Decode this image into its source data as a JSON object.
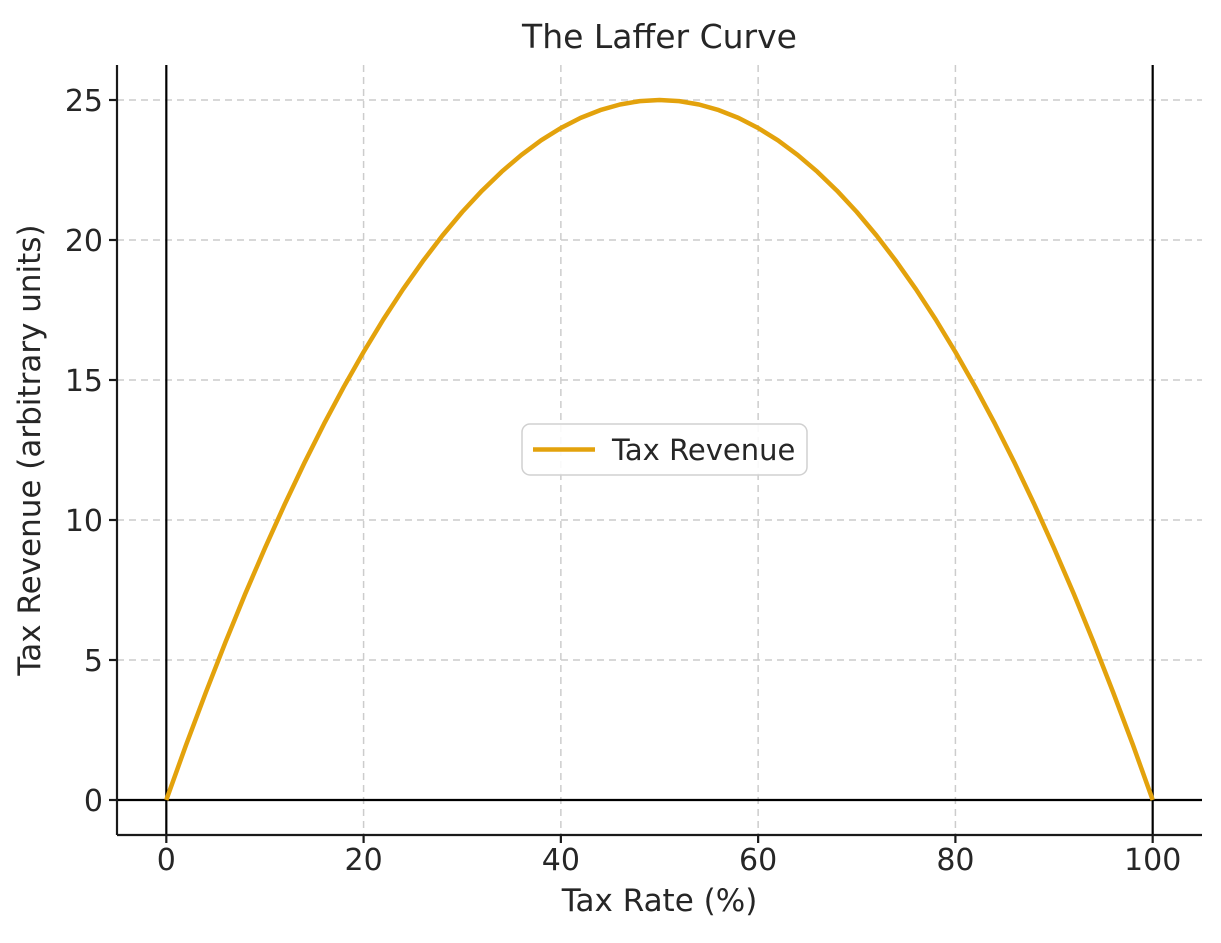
{
  "chart_data": {
    "type": "line",
    "title": "The Laffer Curve",
    "xlabel": "Tax Rate (%)",
    "ylabel": "Tax Revenue (arbitrary units)",
    "xlim": [
      -5,
      105
    ],
    "ylim": [
      -1.25,
      26.25
    ],
    "xticks": [
      0,
      20,
      40,
      60,
      80,
      100
    ],
    "yticks": [
      0,
      5,
      10,
      15,
      20,
      25
    ],
    "grid": {
      "on": true,
      "linestyle": "dashed",
      "color": "#cccccc"
    },
    "colors": {
      "curve": "#E3A20C",
      "reference_line": "#000000",
      "text": "#262626",
      "spine": "#1a1a1a",
      "grid": "#cccccc",
      "legend_border": "#d0d0d0",
      "background": "#ffffff"
    },
    "legend": {
      "location": "center",
      "entries": [
        {
          "label": "Tax Revenue",
          "color": "#E3A20C"
        }
      ]
    },
    "series": [
      {
        "name": "Tax Revenue",
        "color": "#E3A20C",
        "points": [
          [
            0,
            0
          ],
          [
            2,
            1.96
          ],
          [
            4,
            3.84
          ],
          [
            6,
            5.64
          ],
          [
            8,
            7.36
          ],
          [
            10,
            9
          ],
          [
            12,
            10.56
          ],
          [
            14,
            12.04
          ],
          [
            16,
            13.44
          ],
          [
            18,
            14.76
          ],
          [
            20,
            16
          ],
          [
            22,
            17.16
          ],
          [
            24,
            18.24
          ],
          [
            26,
            19.24
          ],
          [
            28,
            20.16
          ],
          [
            30,
            21
          ],
          [
            32,
            21.76
          ],
          [
            34,
            22.44
          ],
          [
            36,
            23.04
          ],
          [
            38,
            23.56
          ],
          [
            40,
            24
          ],
          [
            42,
            24.36
          ],
          [
            44,
            24.64
          ],
          [
            46,
            24.84
          ],
          [
            48,
            24.96
          ],
          [
            50,
            25
          ],
          [
            52,
            24.96
          ],
          [
            54,
            24.84
          ],
          [
            56,
            24.64
          ],
          [
            58,
            24.36
          ],
          [
            60,
            24
          ],
          [
            62,
            23.56
          ],
          [
            64,
            23.04
          ],
          [
            66,
            22.44
          ],
          [
            68,
            21.76
          ],
          [
            70,
            21
          ],
          [
            72,
            20.16
          ],
          [
            74,
            19.24
          ],
          [
            76,
            18.24
          ],
          [
            78,
            17.16
          ],
          [
            80,
            16
          ],
          [
            82,
            14.76
          ],
          [
            84,
            13.44
          ],
          [
            86,
            12.04
          ],
          [
            88,
            10.56
          ],
          [
            90,
            9
          ],
          [
            92,
            7.36
          ],
          [
            94,
            5.64
          ],
          [
            96,
            3.84
          ],
          [
            98,
            1.96
          ],
          [
            100,
            0
          ]
        ]
      }
    ],
    "peak": {
      "x": 50,
      "y": 25
    },
    "reference_lines": [
      {
        "orientation": "horizontal",
        "value": 0,
        "color": "#000000"
      },
      {
        "orientation": "vertical",
        "value": 0,
        "color": "#000000"
      },
      {
        "orientation": "vertical",
        "value": 100,
        "color": "#000000"
      }
    ]
  }
}
